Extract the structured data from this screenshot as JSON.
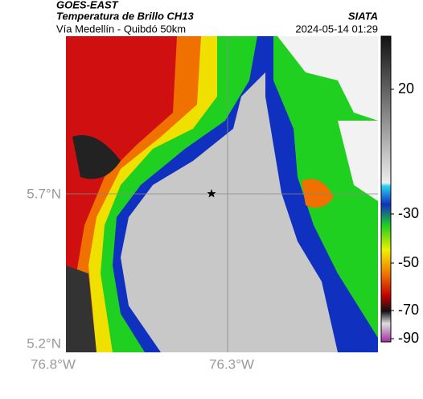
{
  "header": {
    "source": "GOES-EAST",
    "title": "Temperatura de Brillo CH13",
    "subtitle": "Vía Medellín - Quibdó 50km",
    "brand": "SIATA",
    "timestamp": "2024-05-14 01:29"
  },
  "map": {
    "lat_labels": [
      "5.7°N",
      "5.2°N"
    ],
    "lon_labels": [
      "76.8°W",
      "76.3°W"
    ]
  },
  "colorbar": {
    "ticks": [
      20,
      -30,
      -50,
      -70,
      -90
    ]
  }
}
